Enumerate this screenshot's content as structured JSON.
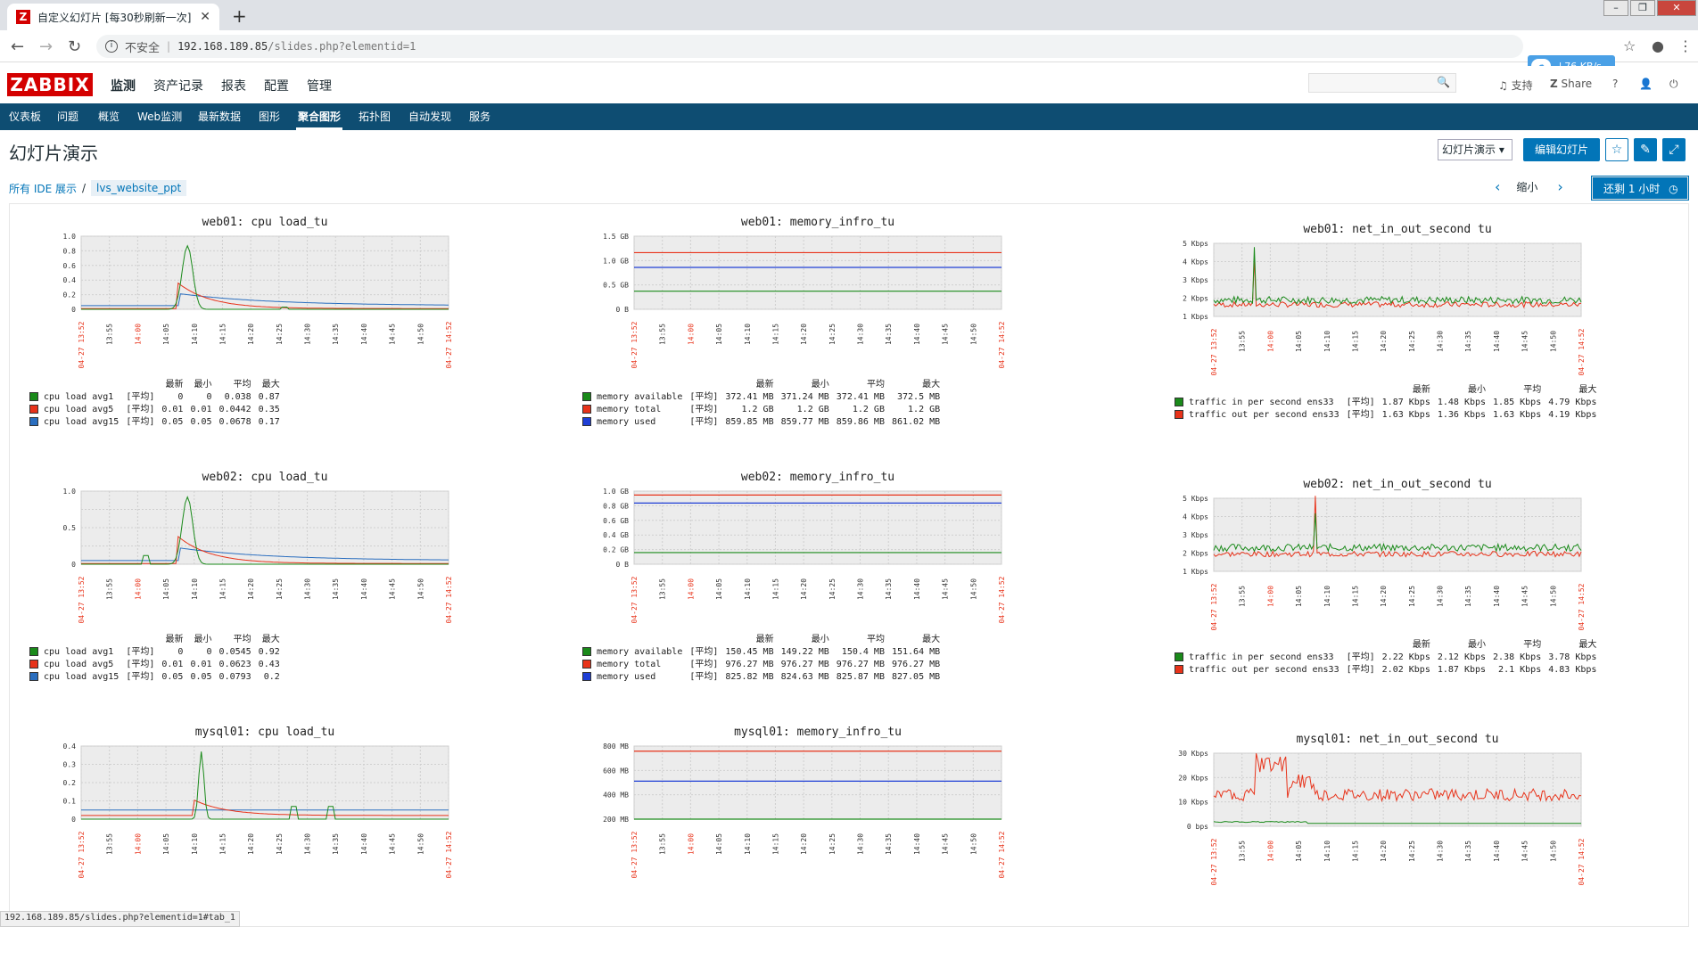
{
  "browser": {
    "tab_title": "自定义幻灯片 [每30秒刷新一次]",
    "tab_favicon": "Z",
    "new_tab": "+",
    "insecure_label": "不安全",
    "url_host": "192.168.189.85",
    "url_path": "/slides.php?elementid=1",
    "speed": "76 KB/s",
    "status_url": "192.168.189.85/slides.php?elementid=1#tab_1"
  },
  "header": {
    "logo": "ZABBIX",
    "menu": [
      "监测",
      "资产记录",
      "报表",
      "配置",
      "管理"
    ],
    "support": "支持",
    "share": "Share",
    "help": "?"
  },
  "subnav": [
    "仪表板",
    "问题",
    "概览",
    "Web监测",
    "最新数据",
    "图形",
    "聚合图形",
    "拓扑图",
    "自动发现",
    "服务"
  ],
  "page": {
    "title": "幻灯片演示",
    "select_value": "幻灯片演示",
    "edit_button": "编辑幻灯片",
    "breadcrumb_root": "所有 IDE 展示",
    "breadcrumb_sep": "/",
    "breadcrumb_current": "lvs_website_ppt",
    "zoom_out": "缩小",
    "back_button": "还剩 1 小时"
  },
  "legend_header": {
    "last": "最新",
    "min": "最小",
    "avg": "平均",
    "max": "最大",
    "func": "[平均]"
  },
  "colors": {
    "green": "#1a8a1a",
    "red": "#e8331a",
    "blue": "#2a6ebf",
    "mem_blue": "#1f3fd6",
    "nav": "#0e4d72",
    "brand": "#d40000",
    "accent": "#0275b8"
  },
  "x_ticks": [
    "13:55",
    "14:00",
    "14:05",
    "14:10",
    "14:15",
    "14:20",
    "14:25",
    "14:30",
    "14:35",
    "14:40",
    "14:45",
    "14:50"
  ],
  "x_start": "04-27 13:52",
  "x_end": "04-27 14:52",
  "graphs": [
    {
      "title": "web01: cpu load_tu",
      "kind": "cpu",
      "y": [
        "1.0",
        "0.8",
        "0.6",
        "0.4",
        "0.2",
        "0"
      ],
      "peak": 0.87,
      "legend": [
        [
          "cpu load avg1",
          "0",
          "0",
          "0.038",
          "0.87"
        ],
        [
          "cpu load avg5",
          "0.01",
          "0.01",
          "0.0442",
          "0.35"
        ],
        [
          "cpu load avg15",
          "0.05",
          "0.05",
          "0.0678",
          "0.17"
        ]
      ]
    },
    {
      "title": "web01: memory_infro_tu",
      "kind": "mem",
      "y": [
        "1.5 GB",
        "1.0 GB",
        "0.5 GB",
        "0 B"
      ],
      "levels": [
        0.248,
        0.775,
        0.573
      ],
      "legend": [
        [
          "memory available",
          "372.41 MB",
          "371.24 MB",
          "372.41 MB",
          "372.5 MB"
        ],
        [
          "memory total",
          "1.2 GB",
          "1.2 GB",
          "1.2 GB",
          "1.2 GB"
        ],
        [
          "memory used",
          "859.85 MB",
          "859.77 MB",
          "859.86 MB",
          "861.02 MB"
        ]
      ]
    },
    {
      "title": "web01: net_in_out_second tu",
      "kind": "net",
      "y": [
        "5 Kbps",
        "4 Kbps",
        "3 Kbps",
        "2 Kbps",
        "1 Kbps"
      ],
      "legend": [
        [
          "traffic in per second  ens33",
          "1.87 Kbps",
          "1.48 Kbps",
          "1.85 Kbps",
          "4.79 Kbps"
        ],
        [
          "traffic out per second ens33",
          "1.63 Kbps",
          "1.36 Kbps",
          "1.63 Kbps",
          "4.19 Kbps"
        ]
      ]
    },
    {
      "title": "web02: cpu load_tu",
      "kind": "cpu",
      "y": [
        "1.0",
        "",
        "0.5",
        "",
        "0"
      ],
      "peak": 0.92,
      "legend": [
        [
          "cpu load avg1",
          "0",
          "0",
          "0.0545",
          "0.92"
        ],
        [
          "cpu load avg5",
          "0.01",
          "0.01",
          "0.0623",
          "0.43"
        ],
        [
          "cpu load avg15",
          "0.05",
          "0.05",
          "0.0793",
          "0.2"
        ]
      ]
    },
    {
      "title": "web02: memory_infro_tu",
      "kind": "mem",
      "y": [
        "1.0 GB",
        "0.8 GB",
        "0.6 GB",
        "0.4 GB",
        "0.2 GB",
        "0 B"
      ],
      "levels": [
        0.159,
        0.947,
        0.837
      ],
      "legend": [
        [
          "memory available",
          "150.45 MB",
          "149.22 MB",
          "150.4 MB",
          "151.64 MB"
        ],
        [
          "memory total",
          "976.27 MB",
          "976.27 MB",
          "976.27 MB",
          "976.27 MB"
        ],
        [
          "memory used",
          "825.82 MB",
          "824.63 MB",
          "825.87 MB",
          "827.05 MB"
        ]
      ]
    },
    {
      "title": "web02: net_in_out_second tu",
      "kind": "net",
      "y": [
        "5 Kbps",
        "4 Kbps",
        "3 Kbps",
        "2 Kbps",
        "1 Kbps"
      ],
      "legend": [
        [
          "traffic in per second  ens33",
          "2.22 Kbps",
          "2.12 Kbps",
          "2.38 Kbps",
          "3.78 Kbps"
        ],
        [
          "traffic out per second ens33",
          "2.02 Kbps",
          "1.87 Kbps",
          "2.1 Kbps",
          "4.83 Kbps"
        ]
      ]
    },
    {
      "title": "mysql01: cpu load_tu",
      "kind": "cpu",
      "y": [
        "0.4",
        "0.3",
        "0.2",
        "0.1",
        "0"
      ],
      "peak": 0.37,
      "legend": []
    },
    {
      "title": "mysql01: memory_infro_tu",
      "kind": "mem",
      "y": [
        "800 MB",
        "600 MB",
        "400 MB",
        "200 MB"
      ],
      "levels": [
        0.0,
        0.93,
        0.52
      ],
      "legend": []
    },
    {
      "title": "mysql01: net_in_out_second tu",
      "kind": "net2",
      "y": [
        "30 Kbps",
        "20 Kbps",
        "10 Kbps",
        "0 bps"
      ],
      "legend": []
    }
  ]
}
